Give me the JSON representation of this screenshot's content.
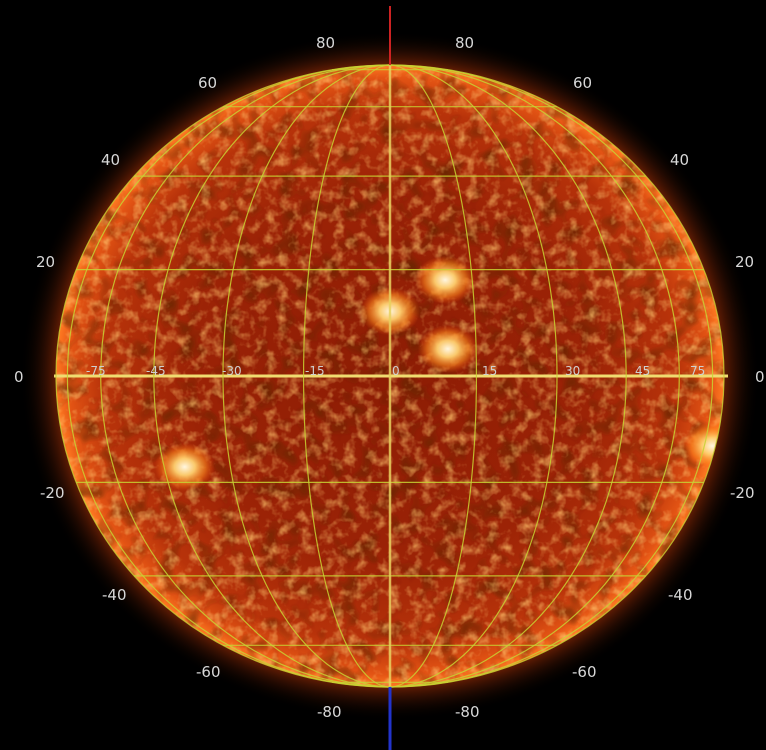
{
  "image": {
    "subject": "solar disk with heliographic grid",
    "colors": {
      "background": "#000000",
      "disk_core": "#8a1a05",
      "disk_mid": "#b8300a",
      "disk_limb": "#ff6a1a",
      "grid": "#c8d232",
      "axis_top": "#cc2222",
      "axis_bottom": "#2233cc",
      "label": "#d8d8d8"
    }
  },
  "latitude_labels": {
    "left": [
      "80",
      "60",
      "40",
      "20",
      "0",
      "-20",
      "-40",
      "-60",
      "-80"
    ],
    "right": [
      "80",
      "60",
      "40",
      "20",
      "0",
      "-20",
      "-40",
      "-60",
      "-80"
    ]
  },
  "longitude_labels": [
    "-75",
    "-45",
    "-30",
    "-15",
    "0",
    "15",
    "30",
    "45",
    "75"
  ],
  "grid": {
    "latitudes_deg": [
      -80,
      -60,
      -40,
      -20,
      0,
      20,
      40,
      60,
      80
    ],
    "longitudes_deg": [
      -75,
      -60,
      -45,
      -30,
      -15,
      0,
      15,
      30,
      45,
      60,
      75
    ]
  },
  "active_regions": [
    {
      "name": "region-north-center",
      "lat": 12,
      "lon": 0
    },
    {
      "name": "region-north-east",
      "lat": 18,
      "lon": 10
    },
    {
      "name": "region-north-east-low",
      "lat": 5,
      "lon": 10
    },
    {
      "name": "region-south-west",
      "lat": -17,
      "lon": -40
    },
    {
      "name": "region-east-limb",
      "lat": -13,
      "lon": 82
    }
  ]
}
